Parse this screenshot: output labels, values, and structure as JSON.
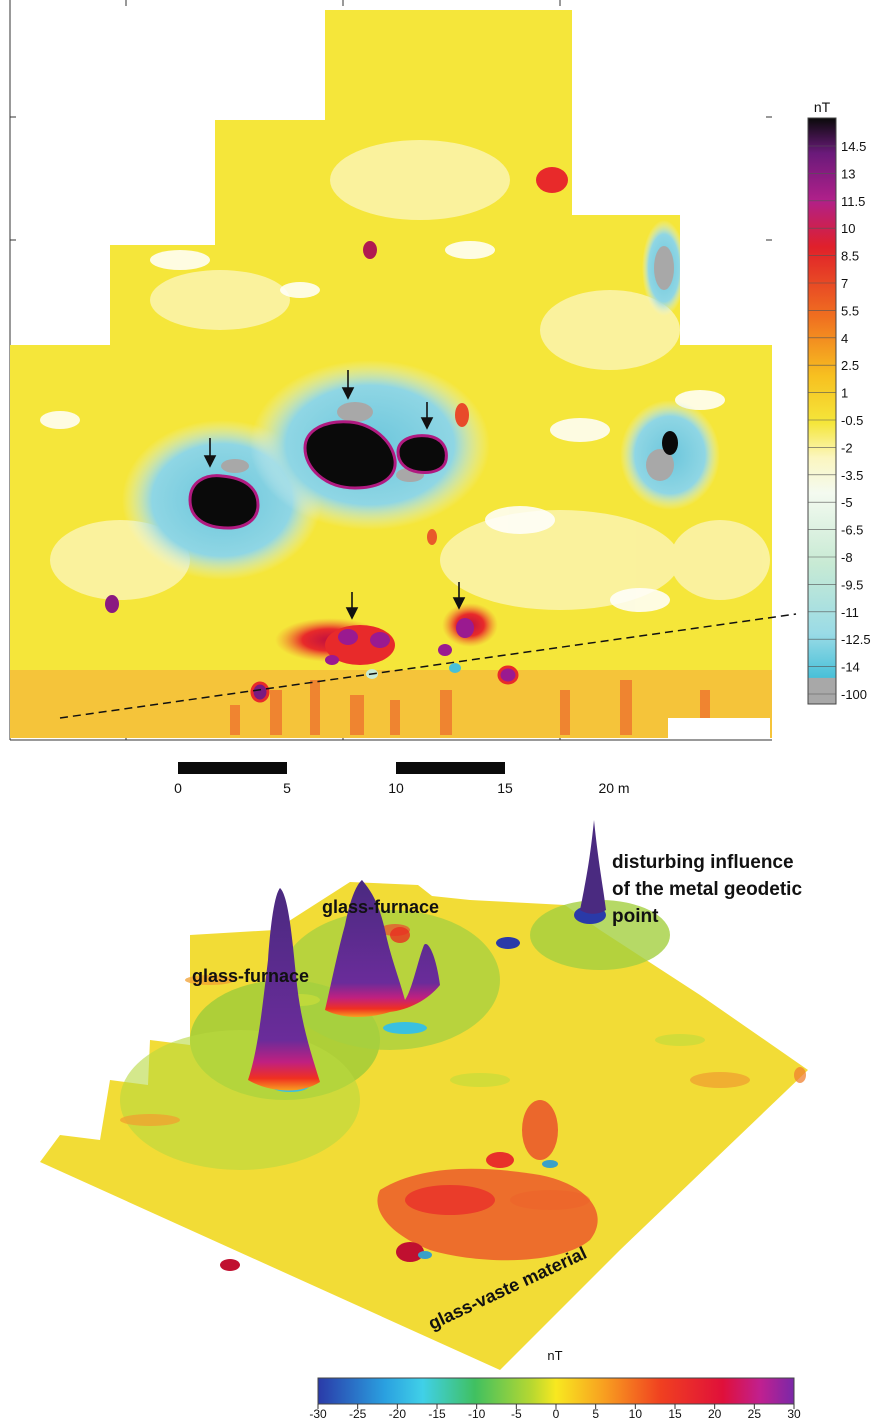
{
  "top_map": {
    "unit": "nT",
    "legend_ticks": [
      "14.5",
      "13",
      "11.5",
      "10",
      "8.5",
      "7",
      "5.5",
      "4",
      "2.5",
      "1",
      "-0.5",
      "-2",
      "-3.5",
      "-5",
      "-6.5",
      "-8",
      "-9.5",
      "-11",
      "-12.5",
      "-14",
      "-100"
    ],
    "scale_labels": [
      "0",
      "5",
      "10",
      "15",
      "20 m"
    ]
  },
  "bottom_map": {
    "unit": "nT",
    "colorbar_ticks": [
      "-30",
      "-25",
      "-20",
      "-15",
      "-10",
      "-5",
      "0",
      "5",
      "10",
      "15",
      "20",
      "25",
      "30"
    ],
    "annotations": {
      "geodetic_line1": "disturbing influence",
      "geodetic_line2": "of the metal geodetic",
      "geodetic_line3": "point",
      "furnace_left": "glass-furnace",
      "furnace_right": "glass-furnace",
      "waste": "glass-vaste material"
    }
  },
  "colors": {
    "background_field": "#f5e63a",
    "positive_anomaly": "#e8202a",
    "strong_positive": "#0a0a0a",
    "negative_halo": "#7fd0e0",
    "min_value": "#a6a6a6",
    "peak_3d": "#5a2a8a"
  }
}
